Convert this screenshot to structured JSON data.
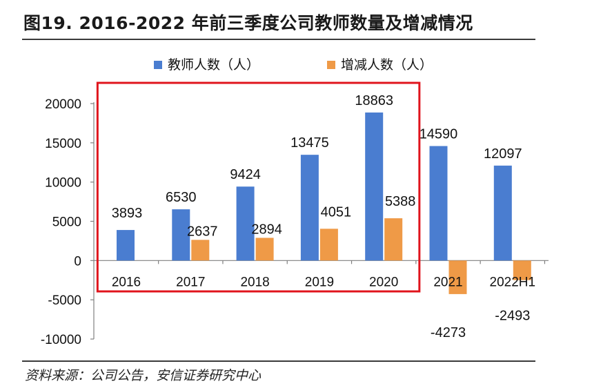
{
  "header": {
    "title": "图19. 2016-2022 年前三季度公司教师数量及增减情况"
  },
  "footer": {
    "source": "资料来源：公司公告，安信证券研究中心"
  },
  "colors": {
    "teachers": "#4a7dd0",
    "change": "#ef9a47",
    "highlight_box": "#e0141c"
  },
  "chart_data": {
    "type": "bar",
    "categories": [
      "2016",
      "2017",
      "2018",
      "2019",
      "2020",
      "2021",
      "2022H1"
    ],
    "series": [
      {
        "name": "教师人数（人）",
        "values": [
          3893,
          6530,
          9424,
          13475,
          18863,
          14590,
          12097
        ]
      },
      {
        "name": "增减人数（人）",
        "values": [
          null,
          2637,
          2894,
          4051,
          5388,
          -4273,
          -2493
        ]
      }
    ],
    "yticks": [
      20000,
      15000,
      10000,
      5000,
      0,
      -5000,
      -10000
    ],
    "ylim": [
      -10000,
      20000
    ],
    "legend_position": "top-center",
    "grid": false,
    "highlight": {
      "from": "2016",
      "to": "2020"
    }
  }
}
